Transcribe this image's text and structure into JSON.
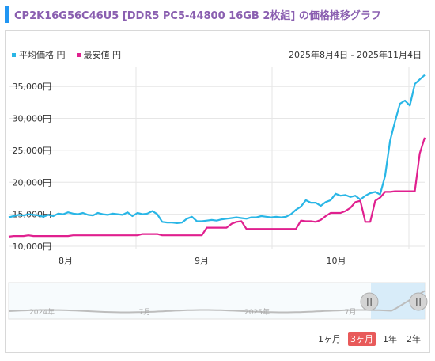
{
  "header": {
    "title": "CP2K16G56C46U5 [DDR5 PC5-44800 16GB 2枚組] の価格推移グラフ"
  },
  "legend": {
    "avg_label": "平均価格 円",
    "min_label": "最安値 円",
    "avg_color": "#29b6e6",
    "min_color": "#e0208f"
  },
  "range_text": "2025年8月4日 - 2025年11月4日",
  "navigator": {
    "labels": [
      "2024年",
      "7月",
      "2025年",
      "7月"
    ],
    "handle_icon": "pause-handle-icon"
  },
  "period_buttons": [
    {
      "label": "1ヶ月",
      "active": false
    },
    {
      "label": "3ヶ月",
      "active": true
    },
    {
      "label": "1年",
      "active": false
    },
    {
      "label": "2年",
      "active": false
    }
  ],
  "chart_data": {
    "type": "line",
    "x_labels": [
      "8月",
      "9月",
      "10月"
    ],
    "y_ticks": [
      "10,000円",
      "15,000円",
      "20,000円",
      "25,000円",
      "30,000円",
      "35,000円"
    ],
    "ylim": [
      9500,
      38000
    ],
    "series": [
      {
        "name": "平均価格 円",
        "color": "#29b6e6",
        "values": [
          14500,
          14700,
          14900,
          14800,
          15000,
          14900,
          14800,
          14600,
          14900,
          14700,
          15100,
          15000,
          15300,
          15100,
          15000,
          15200,
          14900,
          14800,
          15200,
          15000,
          14900,
          15100,
          15000,
          14900,
          15300,
          14700,
          15200,
          15000,
          15100,
          15500,
          15000,
          13800,
          13700,
          13700,
          13600,
          13700,
          14300,
          14600,
          13900,
          13900,
          14000,
          14100,
          14000,
          14200,
          14300,
          14400,
          14500,
          14400,
          14300,
          14500,
          14500,
          14700,
          14600,
          14500,
          14600,
          14500,
          14600,
          15000,
          15700,
          16200,
          17200,
          16800,
          16800,
          16300,
          16900,
          17200,
          18200,
          17900,
          18000,
          17700,
          17900,
          17300,
          17900,
          18300,
          18500,
          18100,
          21000,
          26500,
          29500,
          32300,
          32800,
          32000,
          35400,
          36100,
          36800
        ]
      },
      {
        "name": "最安値 円",
        "color": "#e0208f",
        "values": [
          11500,
          11600,
          11600,
          11600,
          11700,
          11600,
          11600,
          11600,
          11600,
          11600,
          11600,
          11600,
          11600,
          11700,
          11700,
          11700,
          11700,
          11700,
          11700,
          11700,
          11700,
          11700,
          11700,
          11700,
          11700,
          11700,
          11700,
          11900,
          11900,
          11900,
          11900,
          11700,
          11700,
          11700,
          11700,
          11700,
          11700,
          11700,
          11700,
          11700,
          12900,
          12900,
          12900,
          12900,
          12900,
          13500,
          13800,
          13900,
          12700,
          12700,
          12700,
          12700,
          12700,
          12700,
          12700,
          12700,
          12700,
          12700,
          12700,
          14000,
          13900,
          13900,
          13800,
          14100,
          14700,
          15200,
          15200,
          15200,
          15500,
          16000,
          16900,
          17100,
          13800,
          13800,
          17100,
          17600,
          18500,
          18500,
          18600,
          18600,
          18600,
          18600,
          18600,
          24500,
          27000
        ]
      }
    ]
  }
}
